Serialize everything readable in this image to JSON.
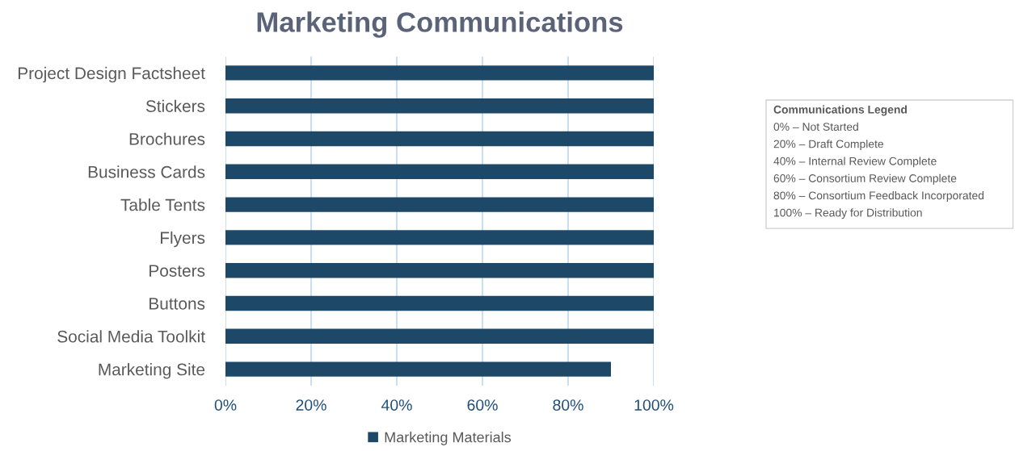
{
  "chart_data": {
    "type": "bar",
    "orientation": "horizontal",
    "title": "Marketing Communications",
    "categories": [
      "Project Design Factsheet",
      "Stickers",
      "Brochures",
      "Business Cards",
      "Table Tents",
      "Flyers",
      "Posters",
      "Buttons",
      "Social Media Toolkit",
      "Marketing Site"
    ],
    "series": [
      {
        "name": "Marketing Materials",
        "color": "#1d4868",
        "values": [
          100,
          100,
          100,
          100,
          100,
          100,
          100,
          100,
          100,
          90
        ]
      }
    ],
    "xlim": [
      0,
      100
    ],
    "xticks": [
      {
        "value": 0,
        "label": "0%"
      },
      {
        "value": 20,
        "label": "20%"
      },
      {
        "value": 40,
        "label": "40%"
      },
      {
        "value": 60,
        "label": "60%"
      },
      {
        "value": 80,
        "label": "80%"
      },
      {
        "value": 100,
        "label": "100%"
      }
    ],
    "grid": "x",
    "legend": "bottom",
    "annotations": [
      "Communications Legend",
      "0% – Not Started",
      "20% – Draft Complete",
      "40% – Internal Review Complete",
      "60% – Consortium Review Complete",
      "80% – Consortium Feedback Incorporated",
      "100% – Ready for Distribution"
    ]
  }
}
